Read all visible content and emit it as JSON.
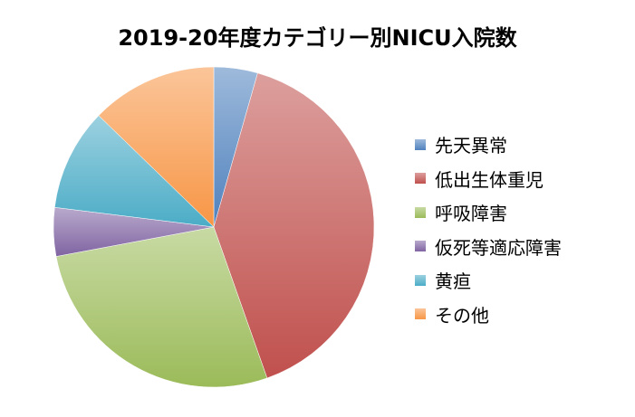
{
  "chart_data": {
    "type": "pie",
    "title": "2019-20年度カテゴリー別NICU入院数",
    "slices": [
      {
        "label": "先天異常",
        "value": 4.5,
        "color": "#4f81bd"
      },
      {
        "label": "低出生体重児",
        "value": 41,
        "color": "#c0504d"
      },
      {
        "label": "呼吸障害",
        "value": 28,
        "color": "#9bbb59"
      },
      {
        "label": "仮死等適応障害",
        "value": 5,
        "color": "#8064a2"
      },
      {
        "label": "黄疸",
        "value": 10.5,
        "color": "#4bacc6"
      },
      {
        "label": "その他",
        "value": 13,
        "color": "#f79646"
      }
    ],
    "legend_position": "right"
  }
}
